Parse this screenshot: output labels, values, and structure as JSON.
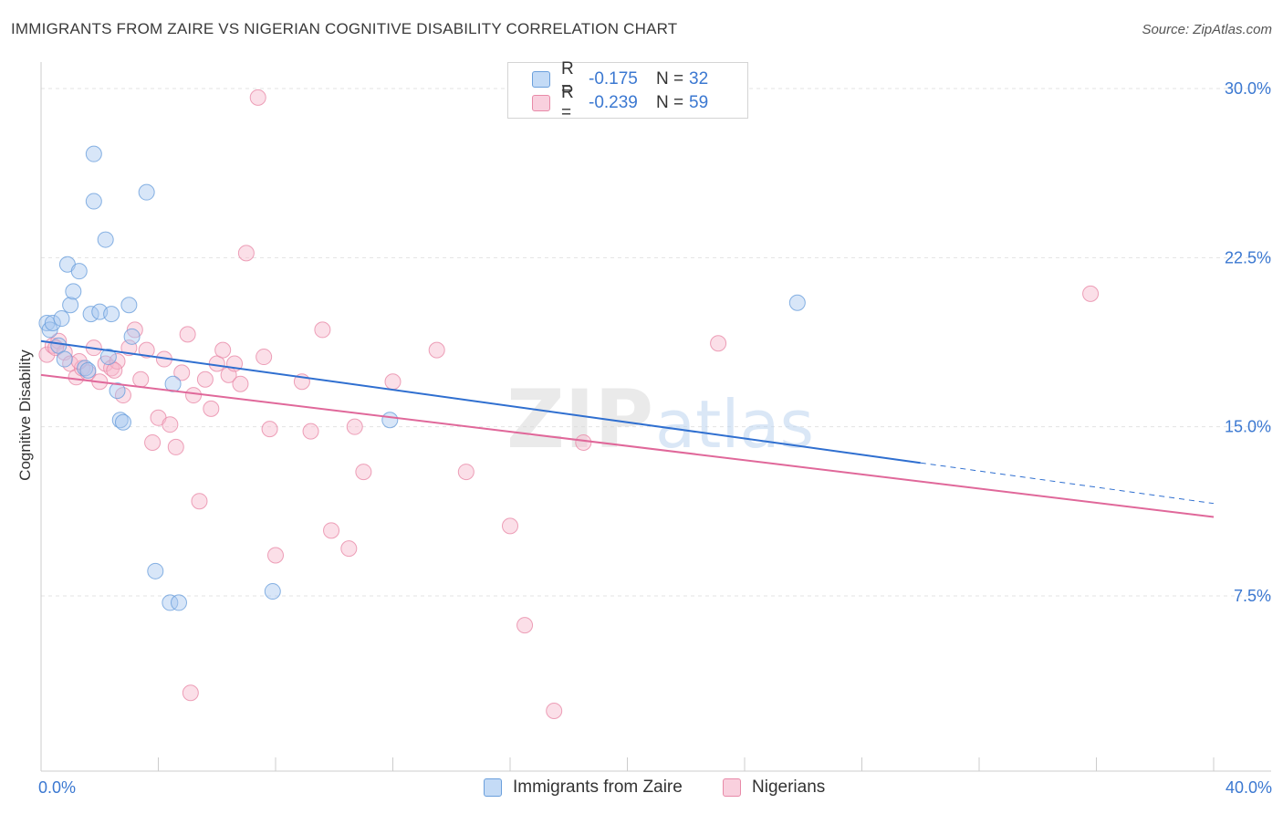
{
  "title": "IMMIGRANTS FROM ZAIRE VS NIGERIAN COGNITIVE DISABILITY CORRELATION CHART",
  "source": "Source: ZipAtlas.com",
  "watermark": {
    "zip": "ZIP",
    "atlas": "atlas"
  },
  "legend": {
    "rows": [
      {
        "r_label": "R =",
        "r_value": "-0.175",
        "n_label": "N =",
        "n_value": "32"
      },
      {
        "r_label": "R =",
        "r_value": "-0.239",
        "n_label": "N =",
        "n_value": "59"
      }
    ]
  },
  "bottom_legend": {
    "series1": "Immigrants from Zaire",
    "series2": "Nigerians"
  },
  "colors": {
    "zaire_fill": "#a8c8f0",
    "zaire_stroke": "#6a9fdc",
    "zaire_line": "#2f6fd0",
    "nigerian_fill": "#f7b8cc",
    "nigerian_stroke": "#e88aa8",
    "nigerian_line": "#e0689a",
    "tick_text": "#3b78d1",
    "grid": "#e3e3e3"
  },
  "chart_data": {
    "type": "scatter",
    "title": "IMMIGRANTS FROM ZAIRE VS NIGERIAN COGNITIVE DISABILITY CORRELATION CHART",
    "xlabel": "",
    "ylabel": "Cognitive Disability",
    "xlim": [
      0,
      40
    ],
    "ylim": [
      0,
      31
    ],
    "x_tick_labels": [
      "0.0%",
      "40.0%"
    ],
    "y_ticks": [
      7.5,
      15.0,
      22.5,
      30.0
    ],
    "y_tick_labels": [
      "7.5%",
      "15.0%",
      "22.5%",
      "30.0%"
    ],
    "grid": true,
    "series": [
      {
        "name": "Immigrants from Zaire",
        "r": -0.175,
        "n": 32,
        "trend": {
          "x0": 0,
          "y0": 18.8,
          "x1": 30.0,
          "y1": 13.4,
          "dash_to_x": 40,
          "dash_to_y": 11.6
        },
        "points": [
          [
            0.2,
            19.6
          ],
          [
            0.3,
            19.3
          ],
          [
            0.4,
            19.6
          ],
          [
            0.6,
            18.6
          ],
          [
            0.7,
            19.8
          ],
          [
            0.8,
            18.0
          ],
          [
            0.9,
            22.2
          ],
          [
            1.3,
            21.9
          ],
          [
            1.0,
            20.4
          ],
          [
            1.1,
            21.0
          ],
          [
            1.5,
            17.6
          ],
          [
            1.6,
            17.5
          ],
          [
            1.7,
            20.0
          ],
          [
            2.0,
            20.1
          ],
          [
            2.4,
            20.0
          ],
          [
            2.3,
            18.1
          ],
          [
            1.8,
            27.1
          ],
          [
            1.8,
            25.0
          ],
          [
            2.2,
            23.3
          ],
          [
            2.6,
            16.6
          ],
          [
            2.7,
            15.3
          ],
          [
            2.8,
            15.2
          ],
          [
            3.0,
            20.4
          ],
          [
            3.1,
            19.0
          ],
          [
            3.6,
            25.4
          ],
          [
            4.5,
            16.9
          ],
          [
            3.9,
            8.6
          ],
          [
            4.4,
            7.2
          ],
          [
            4.7,
            7.2
          ],
          [
            7.9,
            7.7
          ],
          [
            11.9,
            15.3
          ],
          [
            25.8,
            20.5
          ]
        ]
      },
      {
        "name": "Nigerians",
        "r": -0.239,
        "n": 59,
        "trend": {
          "x0": 0,
          "y0": 17.3,
          "x1": 40,
          "y1": 11.0
        },
        "points": [
          [
            0.2,
            18.2
          ],
          [
            0.4,
            18.6
          ],
          [
            0.6,
            18.8
          ],
          [
            0.8,
            18.3
          ],
          [
            1.0,
            17.8
          ],
          [
            1.2,
            17.2
          ],
          [
            1.4,
            17.6
          ],
          [
            1.6,
            17.4
          ],
          [
            1.8,
            18.5
          ],
          [
            2.0,
            17.0
          ],
          [
            2.2,
            17.8
          ],
          [
            2.4,
            17.6
          ],
          [
            2.6,
            17.9
          ],
          [
            2.8,
            16.4
          ],
          [
            3.0,
            18.5
          ],
          [
            3.2,
            19.3
          ],
          [
            3.4,
            17.1
          ],
          [
            3.6,
            18.4
          ],
          [
            3.8,
            14.3
          ],
          [
            4.0,
            15.4
          ],
          [
            4.2,
            18.0
          ],
          [
            4.4,
            15.1
          ],
          [
            4.6,
            14.1
          ],
          [
            4.8,
            17.4
          ],
          [
            5.0,
            19.1
          ],
          [
            5.2,
            16.4
          ],
          [
            5.4,
            11.7
          ],
          [
            5.6,
            17.1
          ],
          [
            5.8,
            15.8
          ],
          [
            6.0,
            17.8
          ],
          [
            6.2,
            18.4
          ],
          [
            6.4,
            17.3
          ],
          [
            6.6,
            17.8
          ],
          [
            6.8,
            16.9
          ],
          [
            7.0,
            22.7
          ],
          [
            7.4,
            29.6
          ],
          [
            7.6,
            18.1
          ],
          [
            7.8,
            14.9
          ],
          [
            8.0,
            9.3
          ],
          [
            8.9,
            17.0
          ],
          [
            9.2,
            14.8
          ],
          [
            9.6,
            19.3
          ],
          [
            9.9,
            10.4
          ],
          [
            10.5,
            9.6
          ],
          [
            10.7,
            15.0
          ],
          [
            11.0,
            13.0
          ],
          [
            12.0,
            17.0
          ],
          [
            13.5,
            18.4
          ],
          [
            14.5,
            13.0
          ],
          [
            16.0,
            10.6
          ],
          [
            16.5,
            6.2
          ],
          [
            17.5,
            2.4
          ],
          [
            18.5,
            14.3
          ],
          [
            23.1,
            18.7
          ],
          [
            35.8,
            20.9
          ],
          [
            5.1,
            3.2
          ],
          [
            2.5,
            17.5
          ],
          [
            1.3,
            17.9
          ],
          [
            0.5,
            18.5
          ]
        ]
      }
    ]
  }
}
